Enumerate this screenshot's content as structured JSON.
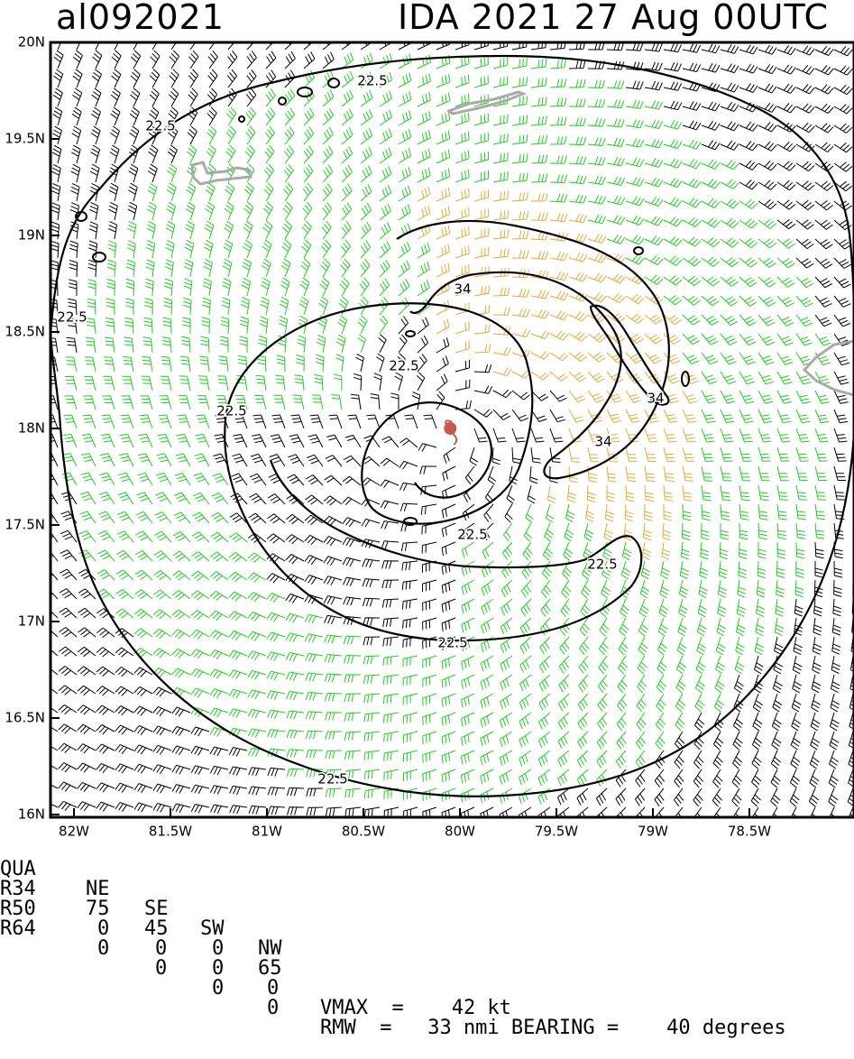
{
  "header": {
    "storm_id": "al092021",
    "title": "IDA 2021 27 Aug 00UTC"
  },
  "map": {
    "lat_range": [
      16,
      20
    ],
    "lon_range": [
      -82.2,
      -78.2
    ],
    "lat_ticks": [
      {
        "value": 20,
        "label": "20N"
      },
      {
        "value": 19.5,
        "label": "19.5N"
      },
      {
        "value": 19,
        "label": "19N"
      },
      {
        "value": 18.5,
        "label": "18.5N"
      },
      {
        "value": 18,
        "label": "18N"
      },
      {
        "value": 17.5,
        "label": "17.5N"
      },
      {
        "value": 17,
        "label": "17N"
      },
      {
        "value": 16.5,
        "label": "16.5N"
      },
      {
        "value": 16,
        "label": "16N"
      }
    ],
    "lon_ticks": [
      {
        "value": -82,
        "label": "82W"
      },
      {
        "value": -81.5,
        "label": "81.5W"
      },
      {
        "value": -81,
        "label": "81W"
      },
      {
        "value": -80.5,
        "label": "80.5W"
      },
      {
        "value": -80,
        "label": "80W"
      },
      {
        "value": -79.5,
        "label": "79.5W"
      },
      {
        "value": -79,
        "label": "79W"
      },
      {
        "value": -78.5,
        "label": "78.5W"
      }
    ],
    "storm_center": {
      "lat": 18.0,
      "lon": -80.05
    },
    "contour_labels": [
      "22.5",
      "22.5",
      "22.5",
      "22.5",
      "22.5",
      "22.5",
      "22.5",
      "22.5",
      "22.5",
      "34",
      "34",
      "34"
    ],
    "colors": {
      "barb_low": "#000000",
      "barb_34": "#22cc22",
      "barb_50": "#e8a838",
      "land": "#aaaaaa",
      "storm_symbol": "#c8584a"
    }
  },
  "table": {
    "headers": [
      "QUA",
      "NE",
      "SE",
      "SW",
      "NW"
    ],
    "rows": [
      {
        "label": "R34",
        "values": [
          "75",
          "45",
          "0",
          "65"
        ]
      },
      {
        "label": "R50",
        "values": [
          "0",
          "0",
          "0",
          "0"
        ]
      },
      {
        "label": "R64",
        "values": [
          "0",
          "0",
          "0",
          "0"
        ]
      }
    ],
    "vmax_line": "VMAX  =    42 kt",
    "rmw_line": "RMW  =   33 nmi BEARING =    40 degrees"
  }
}
